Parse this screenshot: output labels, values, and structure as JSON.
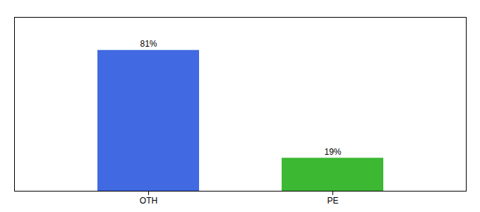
{
  "chart_data": {
    "type": "bar",
    "categories": [
      "OTH",
      "PE"
    ],
    "values": [
      81,
      19
    ],
    "value_labels": [
      "81%",
      "19%"
    ],
    "colors": [
      "#4169e1",
      "#3cb832"
    ],
    "ylim": [
      0,
      100
    ],
    "data_labels": true,
    "tick_labels": "x"
  }
}
